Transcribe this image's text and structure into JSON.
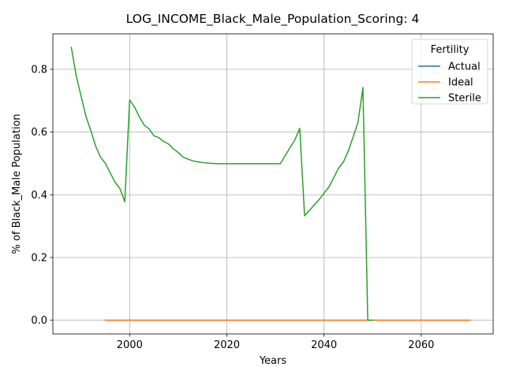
{
  "chart_data": {
    "type": "line",
    "title": "LOG_INCOME_Black_Male_Population_Scoring: 4",
    "xlabel": "Years",
    "ylabel": "% of Black_Male Population",
    "xlim": [
      1984.2,
      2074.8
    ],
    "ylim": [
      -0.0435,
      0.913
    ],
    "xticks": [
      2000,
      2020,
      2040,
      2060
    ],
    "yticks": [
      0.0,
      0.2,
      0.4,
      0.6,
      0.8
    ],
    "ytick_labels": [
      "0.0",
      "0.2",
      "0.4",
      "0.6",
      "0.8"
    ],
    "grid": true,
    "legend": {
      "title": "Fertility",
      "position": "upper right"
    },
    "series": [
      {
        "name": "Actual",
        "color": "#1f77b4",
        "x": [
          1995,
          2070
        ],
        "y": [
          0.0,
          0.0
        ]
      },
      {
        "name": "Ideal",
        "color": "#ff7f0e",
        "x": [
          1995,
          2070
        ],
        "y": [
          0.0,
          0.0
        ]
      },
      {
        "name": "Sterile",
        "color": "#2ca02c",
        "x": [
          1988,
          1989,
          1990,
          1991,
          1992,
          1993,
          1994,
          1995,
          1996,
          1997,
          1998,
          1999,
          2000,
          2001,
          2002,
          2003,
          2004,
          2005,
          2006,
          2007,
          2008,
          2009,
          2010,
          2011,
          2012,
          2013,
          2014,
          2015,
          2016,
          2017,
          2018,
          2019,
          2020,
          2025,
          2030,
          2031,
          2032,
          2033,
          2034,
          2035,
          2036,
          2037,
          2038,
          2039,
          2040,
          2041,
          2042,
          2043,
          2044,
          2045,
          2046,
          2047,
          2048,
          2049,
          2050
        ],
        "y": [
          0.87,
          0.78,
          0.715,
          0.65,
          0.605,
          0.555,
          0.52,
          0.5,
          0.47,
          0.44,
          0.42,
          0.378,
          0.702,
          0.68,
          0.648,
          0.622,
          0.61,
          0.588,
          0.582,
          0.57,
          0.562,
          0.546,
          0.535,
          0.52,
          0.514,
          0.508,
          0.505,
          0.503,
          0.501,
          0.5,
          0.499,
          0.499,
          0.499,
          0.499,
          0.499,
          0.499,
          0.525,
          0.55,
          0.575,
          0.612,
          0.333,
          0.35,
          0.368,
          0.385,
          0.405,
          0.425,
          0.455,
          0.485,
          0.505,
          0.54,
          0.585,
          0.632,
          0.742,
          0.0,
          0.0
        ]
      }
    ]
  }
}
